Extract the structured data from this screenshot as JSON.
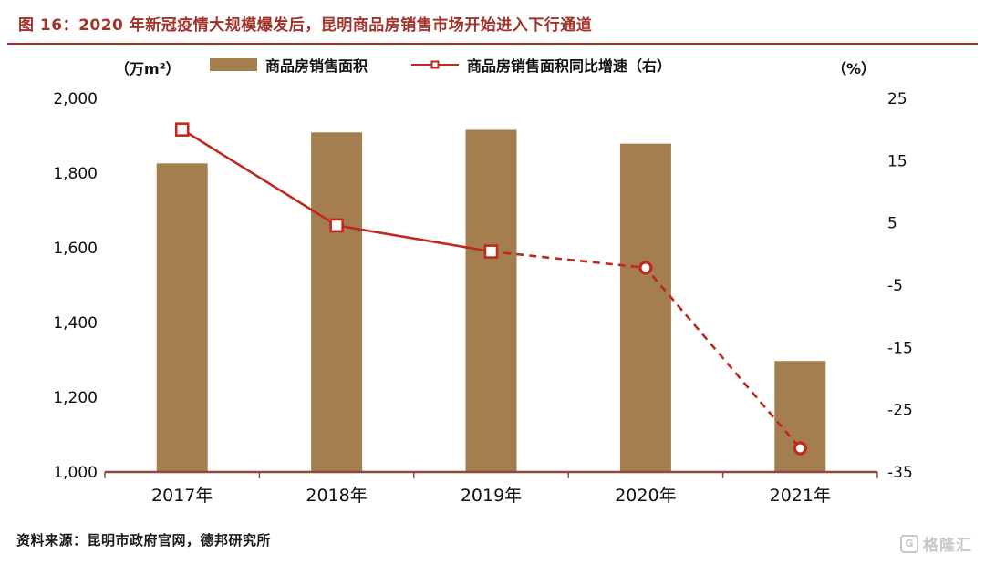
{
  "header": {
    "title": "图 16：2020 年新冠疫情大规模爆发后，昆明商品房销售市场开始进入下行通道"
  },
  "legend": {
    "left_axis_unit": "（万m²）",
    "right_axis_unit": "（%）",
    "items": [
      {
        "label": "商品房销售面积",
        "type": "bar"
      },
      {
        "label": "商品房销售面积同比增速（右）",
        "type": "line"
      }
    ]
  },
  "chart_data": {
    "type": "bar+line",
    "title": "2020 年新冠疫情大规模爆发后，昆明商品房销售市场开始进入下行通道",
    "categories": [
      "2017年",
      "2018年",
      "2019年",
      "2020年",
      "2021年"
    ],
    "series": [
      {
        "name": "商品房销售面积",
        "type": "bar",
        "axis": "left",
        "unit": "万m²",
        "values": [
          1826,
          1909,
          1916,
          1879,
          1297
        ]
      },
      {
        "name": "商品房销售面积同比增速（右）",
        "type": "line",
        "axis": "right",
        "unit": "%",
        "values": [
          20,
          4.6,
          0.4,
          -2.2,
          -31.2
        ],
        "markers": [
          "square",
          "square",
          "square",
          "circle",
          "circle"
        ],
        "dashed_from_index": 2
      }
    ],
    "axes": {
      "left": {
        "unit": "万m²",
        "min": 1000,
        "max": 2000,
        "ticks": [
          {
            "v": 2000,
            "label": "2,000"
          },
          {
            "v": 1800,
            "label": "1,800"
          },
          {
            "v": 1600,
            "label": "1,600"
          },
          {
            "v": 1400,
            "label": "1,400"
          },
          {
            "v": 1200,
            "label": "1,200"
          },
          {
            "v": 1000,
            "label": "1,000"
          }
        ]
      },
      "right": {
        "unit": "%",
        "min": -35,
        "max": 25,
        "ticks": [
          {
            "v": 25,
            "label": "25"
          },
          {
            "v": 15,
            "label": "15"
          },
          {
            "v": 5,
            "label": "5"
          },
          {
            "v": -5,
            "label": "-5"
          },
          {
            "v": -15,
            "label": "-15"
          },
          {
            "v": -25,
            "label": "-25"
          },
          {
            "v": -35,
            "label": "-35"
          }
        ]
      }
    },
    "grid": false,
    "legend_position": "top"
  },
  "footer": {
    "source": "资料来源：昆明市政府官网，德邦研究所"
  },
  "watermark": {
    "icon": "gelonghui-logo",
    "text": "格隆汇"
  },
  "colors": {
    "accent": "#A0342B",
    "bar": "#A57E4F",
    "line": "#BE2A1D",
    "axis": "#8B4A3A",
    "watermark": "#C9C9C9"
  }
}
